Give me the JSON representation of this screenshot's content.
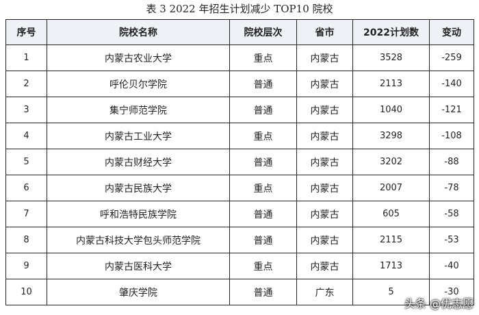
{
  "title": "表 3 2022 年招生计划减少 TOP10 院校",
  "table": {
    "header": [
      "序号",
      "院校名称",
      "院校层次",
      "省市",
      "2022计划数",
      "变动"
    ],
    "rows": [
      [
        "1",
        "内蒙古农业大学",
        "重点",
        "内蒙古",
        "3528",
        "-259"
      ],
      [
        "2",
        "呼伦贝尔学院",
        "普通",
        "内蒙古",
        "2113",
        "-140"
      ],
      [
        "3",
        "集宁师范学院",
        "普通",
        "内蒙古",
        "1040",
        "-121"
      ],
      [
        "4",
        "内蒙古工业大学",
        "重点",
        "内蒙古",
        "3298",
        "-108"
      ],
      [
        "5",
        "内蒙古财经大学",
        "普通",
        "内蒙古",
        "3202",
        "-88"
      ],
      [
        "6",
        "内蒙古民族大学",
        "重点",
        "内蒙古",
        "2007",
        "-78"
      ],
      [
        "7",
        "呼和浩特民族学院",
        "普通",
        "内蒙古",
        "605",
        "-58"
      ],
      [
        "8",
        "内蒙古科技大学包头师范学院",
        "普通",
        "内蒙古",
        "2115",
        "-53"
      ],
      [
        "9",
        "内蒙古医科大学",
        "重点",
        "内蒙古",
        "1713",
        "-40"
      ],
      [
        "10",
        "肇庆学院",
        "普通",
        "广东",
        "5",
        "-30"
      ]
    ]
  },
  "watermark": "头条 @优志愿"
}
